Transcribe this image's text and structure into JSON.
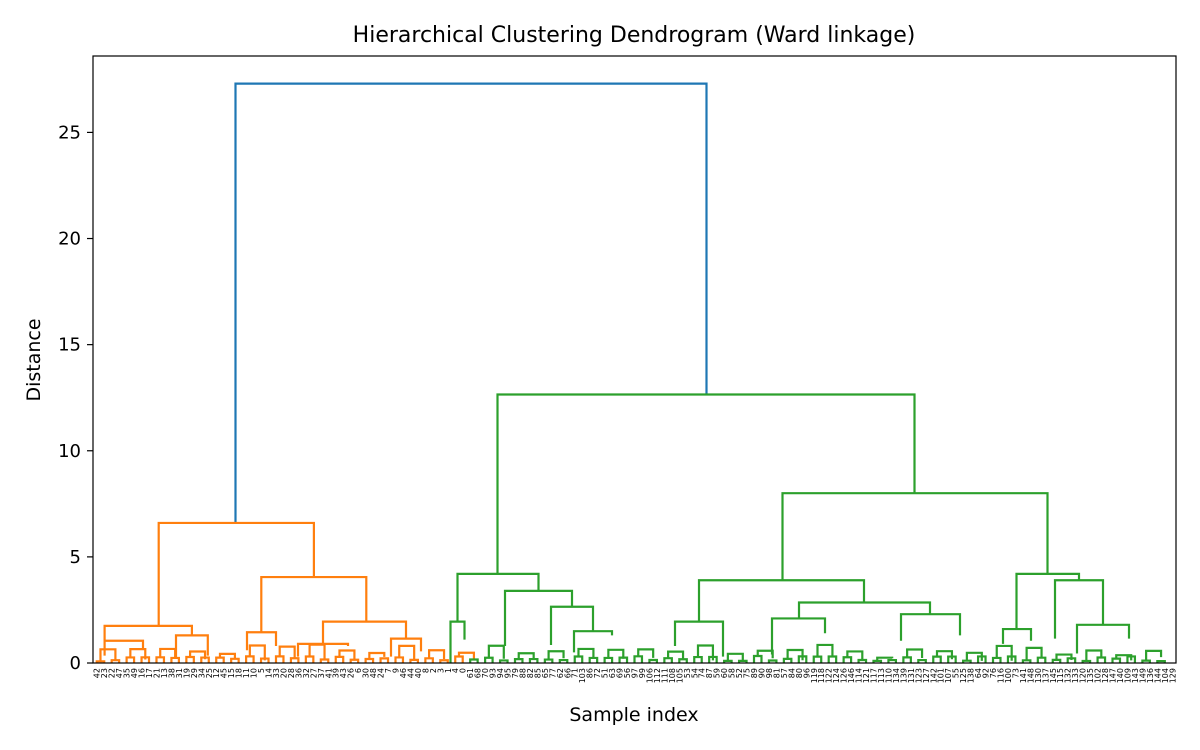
{
  "chart_data": {
    "type": "dendrogram",
    "title": "Hierarchical Clustering Dendrogram (Ward linkage)",
    "xlabel": "Sample index",
    "ylabel": "Distance",
    "ylim": [
      0,
      28.6
    ],
    "yticks": [
      0,
      5,
      10,
      15,
      20,
      25
    ],
    "grid": false,
    "legend": "none",
    "colors": {
      "root": "#1f77b4",
      "cluster_1": "#ff7f0e",
      "cluster_2": "#2ca02c"
    },
    "leaf_labels": [
      "42",
      "23",
      "22",
      "47",
      "35",
      "49",
      "16",
      "17",
      "21",
      "13",
      "38",
      "31",
      "19",
      "29",
      "34",
      "25",
      "12",
      "45",
      "15",
      "18",
      "11",
      "10",
      "5",
      "14",
      "33",
      "20",
      "28",
      "36",
      "32",
      "27",
      "37",
      "41",
      "39",
      "43",
      "26",
      "6",
      "30",
      "48",
      "24",
      "7",
      "9",
      "46",
      "44",
      "40",
      "8",
      "2",
      "3",
      "1",
      "4",
      "0",
      "61",
      "68",
      "70",
      "93",
      "94",
      "95",
      "79",
      "88",
      "82",
      "85",
      "65",
      "77",
      "62",
      "66",
      "71",
      "103",
      "86",
      "72",
      "51",
      "63",
      "69",
      "56",
      "97",
      "99",
      "106",
      "112",
      "111",
      "108",
      "105",
      "53",
      "54",
      "74",
      "87",
      "59",
      "60",
      "58",
      "52",
      "75",
      "89",
      "90",
      "98",
      "81",
      "57",
      "84",
      "80",
      "96",
      "119",
      "118",
      "122",
      "124",
      "126",
      "146",
      "114",
      "121",
      "117",
      "113",
      "110",
      "134",
      "139",
      "131",
      "123",
      "127",
      "142",
      "101",
      "107",
      "55",
      "125",
      "138",
      "64",
      "92",
      "76",
      "116",
      "100",
      "73",
      "141",
      "148",
      "130",
      "137",
      "145",
      "115",
      "132",
      "133",
      "120",
      "135",
      "102",
      "128",
      "147",
      "140",
      "109",
      "143",
      "149",
      "136",
      "144",
      "104",
      "129"
    ],
    "merges": [
      {
        "pair": [
          "root",
          "cluster_1",
          "cluster_2"
        ],
        "distance": 27.3
      },
      {
        "cluster": "cluster_2",
        "distance": 12.65
      },
      {
        "cluster": "cluster_2_right",
        "distance": 8.0
      },
      {
        "cluster": "cluster_1",
        "distance": 6.6
      },
      {
        "cluster": "cluster_2_left",
        "distance": 4.2
      },
      {
        "cluster": "cluster_1_right",
        "distance": 4.05
      },
      {
        "cluster": "cluster_2_right_a",
        "distance": 3.9
      },
      {
        "cluster": "cluster_2_right_b",
        "distance": 4.2
      }
    ],
    "links": [
      {
        "c": "#1f77b4",
        "l": 235.5,
        "r": 706.5,
        "h": 27.3,
        "lb": 6.6,
        "rb": 12.65
      },
      {
        "c": "#ff7f0e",
        "l": 158.7,
        "r": 313.9,
        "h": 6.6,
        "lb": 1.75,
        "rb": 4.05
      },
      {
        "c": "#ff7f0e",
        "l": 104.6,
        "r": 191.9,
        "h": 1.75,
        "lb": 1.05,
        "rb": 1.3
      },
      {
        "c": "#ff7f0e",
        "l": 261.3,
        "r": 366.3,
        "h": 4.05,
        "lb": 1.45,
        "rb": 1.95
      },
      {
        "c": "#ff7f0e",
        "l": 323,
        "r": 406,
        "h": 1.95,
        "lb": 0.9,
        "rb": 1.15
      },
      {
        "c": "#ff7f0e",
        "l": 247,
        "r": 276,
        "h": 1.45,
        "lb": 0.6,
        "rb": 0.8
      },
      {
        "c": "#ff7f0e",
        "l": 104.6,
        "r": 143,
        "h": 1.05,
        "lb": 0.35,
        "rb": 0.7
      },
      {
        "c": "#ff7f0e",
        "l": 176,
        "r": 207.8,
        "h": 1.3,
        "lb": 0.2,
        "rb": 0.35
      },
      {
        "c": "#ff7f0e",
        "l": 298,
        "r": 348,
        "h": 0.9,
        "lb": 0.3,
        "rb": 0.8
      },
      {
        "c": "#ff7f0e",
        "l": 391,
        "r": 421,
        "h": 1.15,
        "lb": 0.3,
        "rb": 0.55
      },
      {
        "c": "#2ca02c",
        "l": 497.5,
        "r": 914.5,
        "h": 12.65,
        "lb": 4.2,
        "rb": 8.0
      },
      {
        "c": "#2ca02c",
        "l": 457.5,
        "r": 538.5,
        "h": 4.2,
        "lb": 1.95,
        "rb": 3.4
      },
      {
        "c": "#2ca02c",
        "l": 505,
        "r": 572,
        "h": 3.4,
        "lb": 0.8,
        "rb": 2.65
      },
      {
        "c": "#2ca02c",
        "l": 551,
        "r": 593,
        "h": 2.65,
        "lb": 0.85,
        "rb": 1.5
      },
      {
        "c": "#2ca02c",
        "l": 574,
        "r": 612,
        "h": 1.5,
        "lb": 0.5,
        "rb": 1.3
      },
      {
        "c": "#2ca02c",
        "l": 450.5,
        "r": 464.5,
        "h": 1.95,
        "lb": 0,
        "rb": 1.1
      },
      {
        "c": "#2ca02c",
        "l": 782.5,
        "r": 1047.5,
        "h": 8.0,
        "lb": 3.9,
        "rb": 4.2
      },
      {
        "c": "#2ca02c",
        "l": 699,
        "r": 864,
        "h": 3.9,
        "lb": 1.95,
        "rb": 2.85
      },
      {
        "c": "#2ca02c",
        "l": 799,
        "r": 930,
        "h": 2.85,
        "lb": 2.1,
        "rb": 2.3
      },
      {
        "c": "#2ca02c",
        "l": 1016.5,
        "r": 1079,
        "h": 4.2,
        "lb": 1.6,
        "rb": 3.9
      },
      {
        "c": "#2ca02c",
        "l": 1055,
        "r": 1103,
        "h": 3.9,
        "lb": 1.15,
        "rb": 1.8
      },
      {
        "c": "#2ca02c",
        "l": 1077,
        "r": 1129,
        "h": 1.8,
        "lb": 0.45,
        "rb": 1.15
      },
      {
        "c": "#2ca02c",
        "l": 675,
        "r": 723,
        "h": 1.95,
        "lb": 0.8,
        "rb": 0.3
      },
      {
        "c": "#2ca02c",
        "l": 772,
        "r": 825,
        "h": 2.1,
        "lb": 0.4,
        "rb": 1.4
      },
      {
        "c": "#2ca02c",
        "l": 901,
        "r": 960,
        "h": 2.3,
        "lb": 1.05,
        "rb": 1.3
      },
      {
        "c": "#2ca02c",
        "l": 1003,
        "r": 1031,
        "h": 1.6,
        "lb": 0.9,
        "rb": 1.05
      }
    ]
  }
}
